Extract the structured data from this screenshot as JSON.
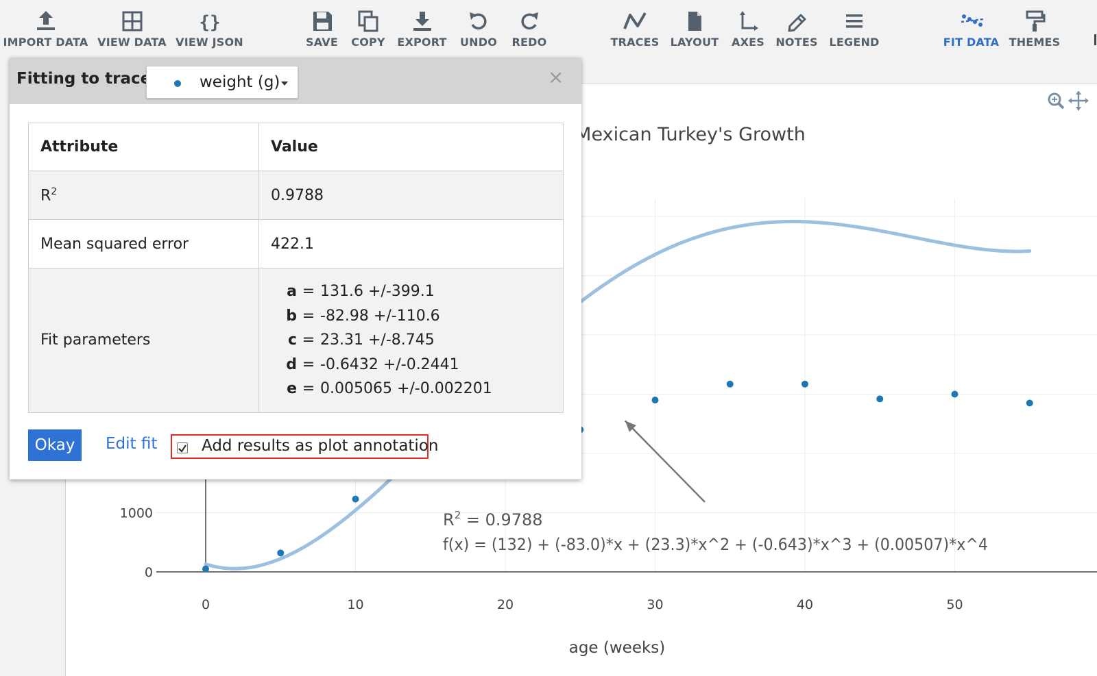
{
  "toolbar": {
    "import_data": "IMPORT DATA",
    "view_data": "VIEW DATA",
    "view_json": "VIEW JSON",
    "save": "SAVE",
    "copy": "COPY",
    "export": "EXPORT",
    "undo": "UNDO",
    "redo": "REDO",
    "traces": "TRACES",
    "layout": "LAYOUT",
    "axes": "AXES",
    "notes": "NOTES",
    "legend": "LEGEND",
    "fit_data": "FIT DATA",
    "themes": "THEMES",
    "active": "FIT DATA",
    "active_color": "#2f6fc7"
  },
  "dialog": {
    "title": "Fitting to trace:",
    "trace": "weight (g)",
    "trace_color": "#1f77b4",
    "close": "×",
    "table": {
      "headers": [
        "Attribute",
        "Value"
      ],
      "r2_label": "R",
      "r2_sup": "2",
      "r2_value": "0.9788",
      "mse_label": "Mean squared error",
      "mse_value": "422.1",
      "params_label": "Fit parameters",
      "params": [
        {
          "name": "a",
          "value": "131.6 +/-399.1"
        },
        {
          "name": "b",
          "value": "-82.98 +/-110.6"
        },
        {
          "name": "c",
          "value": "23.31 +/-8.745"
        },
        {
          "name": "d",
          "value": "-0.6432 +/-0.2441"
        },
        {
          "name": "e",
          "value": "0.005065 +/-0.002201"
        }
      ],
      "equals": "="
    },
    "okay": "Okay",
    "edit_fit": "Edit fit",
    "add_annotation": "Add results as plot annotation",
    "add_annotation_checked": true,
    "highlight_color": "#e52b1f"
  },
  "chart_data": {
    "type": "scatter",
    "title": "Mexican Turkey's Growth",
    "xlabel": "age (weeks)",
    "ylabel": "",
    "xlim": [
      -3,
      58
    ],
    "ylim": [
      -4000,
      4200
    ],
    "x_ticks": [
      0,
      10,
      20,
      30,
      40,
      50
    ],
    "y_ticks": [
      0,
      1000
    ],
    "grid": true,
    "series": [
      {
        "name": "weight (g)",
        "mode": "markers",
        "color": "#1f77b4",
        "x": [
          0,
          5,
          10,
          25,
          30,
          35,
          40,
          45,
          50,
          55
        ],
        "y": [
          50,
          320,
          1230,
          2400,
          2900,
          3170,
          3170,
          2920,
          3000,
          2850
        ]
      }
    ],
    "fit": {
      "type": "poly4",
      "color": "#9cc0e0",
      "coefficients": [
        131.6,
        -82.98,
        23.31,
        -0.6432,
        0.005065
      ],
      "x_range": [
        0,
        55
      ]
    },
    "annotation": {
      "r2_text": "R",
      "r2_sup": "2",
      "r2_value": " = 0.9788",
      "formula": "f(x) = (132) + (-83.0)*x + (23.3)*x^2 + (-0.643)*x^3 + (0.00507)*x^4",
      "arrow_to": [
        28,
        2550
      ],
      "arrow_color": "#777777"
    }
  }
}
